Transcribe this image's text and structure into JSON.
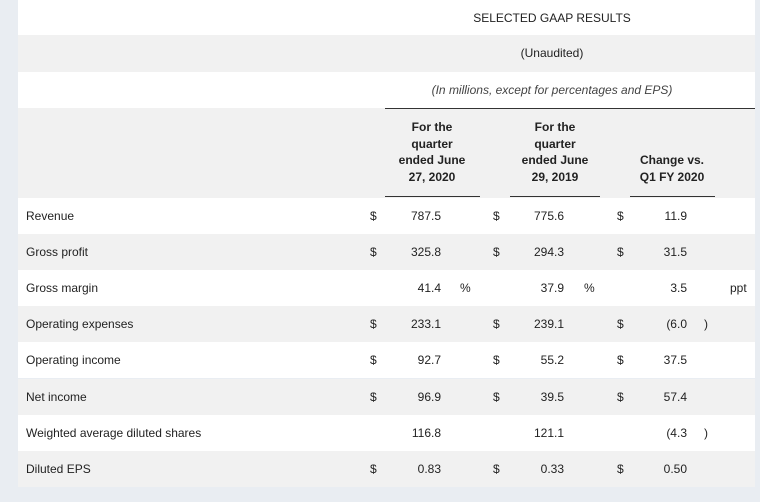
{
  "table": {
    "title": "SELECTED GAAP RESULTS",
    "subtitle": "(Unaudited)",
    "note": "(In millions, except for percentages and EPS)",
    "columns": [
      [
        "For the",
        "quarter",
        "ended June",
        "27, 2020"
      ],
      [
        "For the",
        "quarter",
        "ended June",
        "29, 2019"
      ],
      [
        "Change vs.",
        "Q1 FY 2020"
      ]
    ],
    "rows": [
      {
        "label": "Revenue",
        "cells": [
          {
            "prefix": "$",
            "value": "787.5"
          },
          {
            "prefix": "$",
            "value": "775.6"
          },
          {
            "prefix": "$",
            "value": "11.9"
          }
        ]
      },
      {
        "label": "Gross profit",
        "cells": [
          {
            "prefix": "$",
            "value": "325.8"
          },
          {
            "prefix": "$",
            "value": "294.3"
          },
          {
            "prefix": "$",
            "value": "31.5"
          }
        ]
      },
      {
        "label": "Gross margin",
        "cells": [
          {
            "value": "41.4",
            "suffix": "%"
          },
          {
            "value": "37.9",
            "suffix": "%"
          },
          {
            "value": "3.5",
            "suffix": "ppt"
          }
        ]
      },
      {
        "label": "Operating expenses",
        "cells": [
          {
            "prefix": "$",
            "value": "233.1"
          },
          {
            "prefix": "$",
            "value": "239.1"
          },
          {
            "prefix": "$",
            "value": "(6.0",
            "suffix": ")"
          }
        ]
      },
      {
        "label": "Operating income",
        "cells": [
          {
            "prefix": "$",
            "value": "92.7"
          },
          {
            "prefix": "$",
            "value": "55.2"
          },
          {
            "prefix": "$",
            "value": "37.5"
          }
        ]
      },
      {
        "label": "Net income",
        "cells": [
          {
            "prefix": "$",
            "value": "96.9"
          },
          {
            "prefix": "$",
            "value": "39.5"
          },
          {
            "prefix": "$",
            "value": "57.4"
          }
        ]
      },
      {
        "label": "Weighted average diluted shares",
        "cells": [
          {
            "value": "116.8"
          },
          {
            "value": "121.1"
          },
          {
            "value": "(4.3",
            "suffix": ")"
          }
        ]
      },
      {
        "label": "Diluted EPS",
        "cells": [
          {
            "prefix": "$",
            "value": "0.83"
          },
          {
            "prefix": "$",
            "value": "0.33"
          },
          {
            "prefix": "$",
            "value": "0.50"
          }
        ]
      }
    ]
  }
}
